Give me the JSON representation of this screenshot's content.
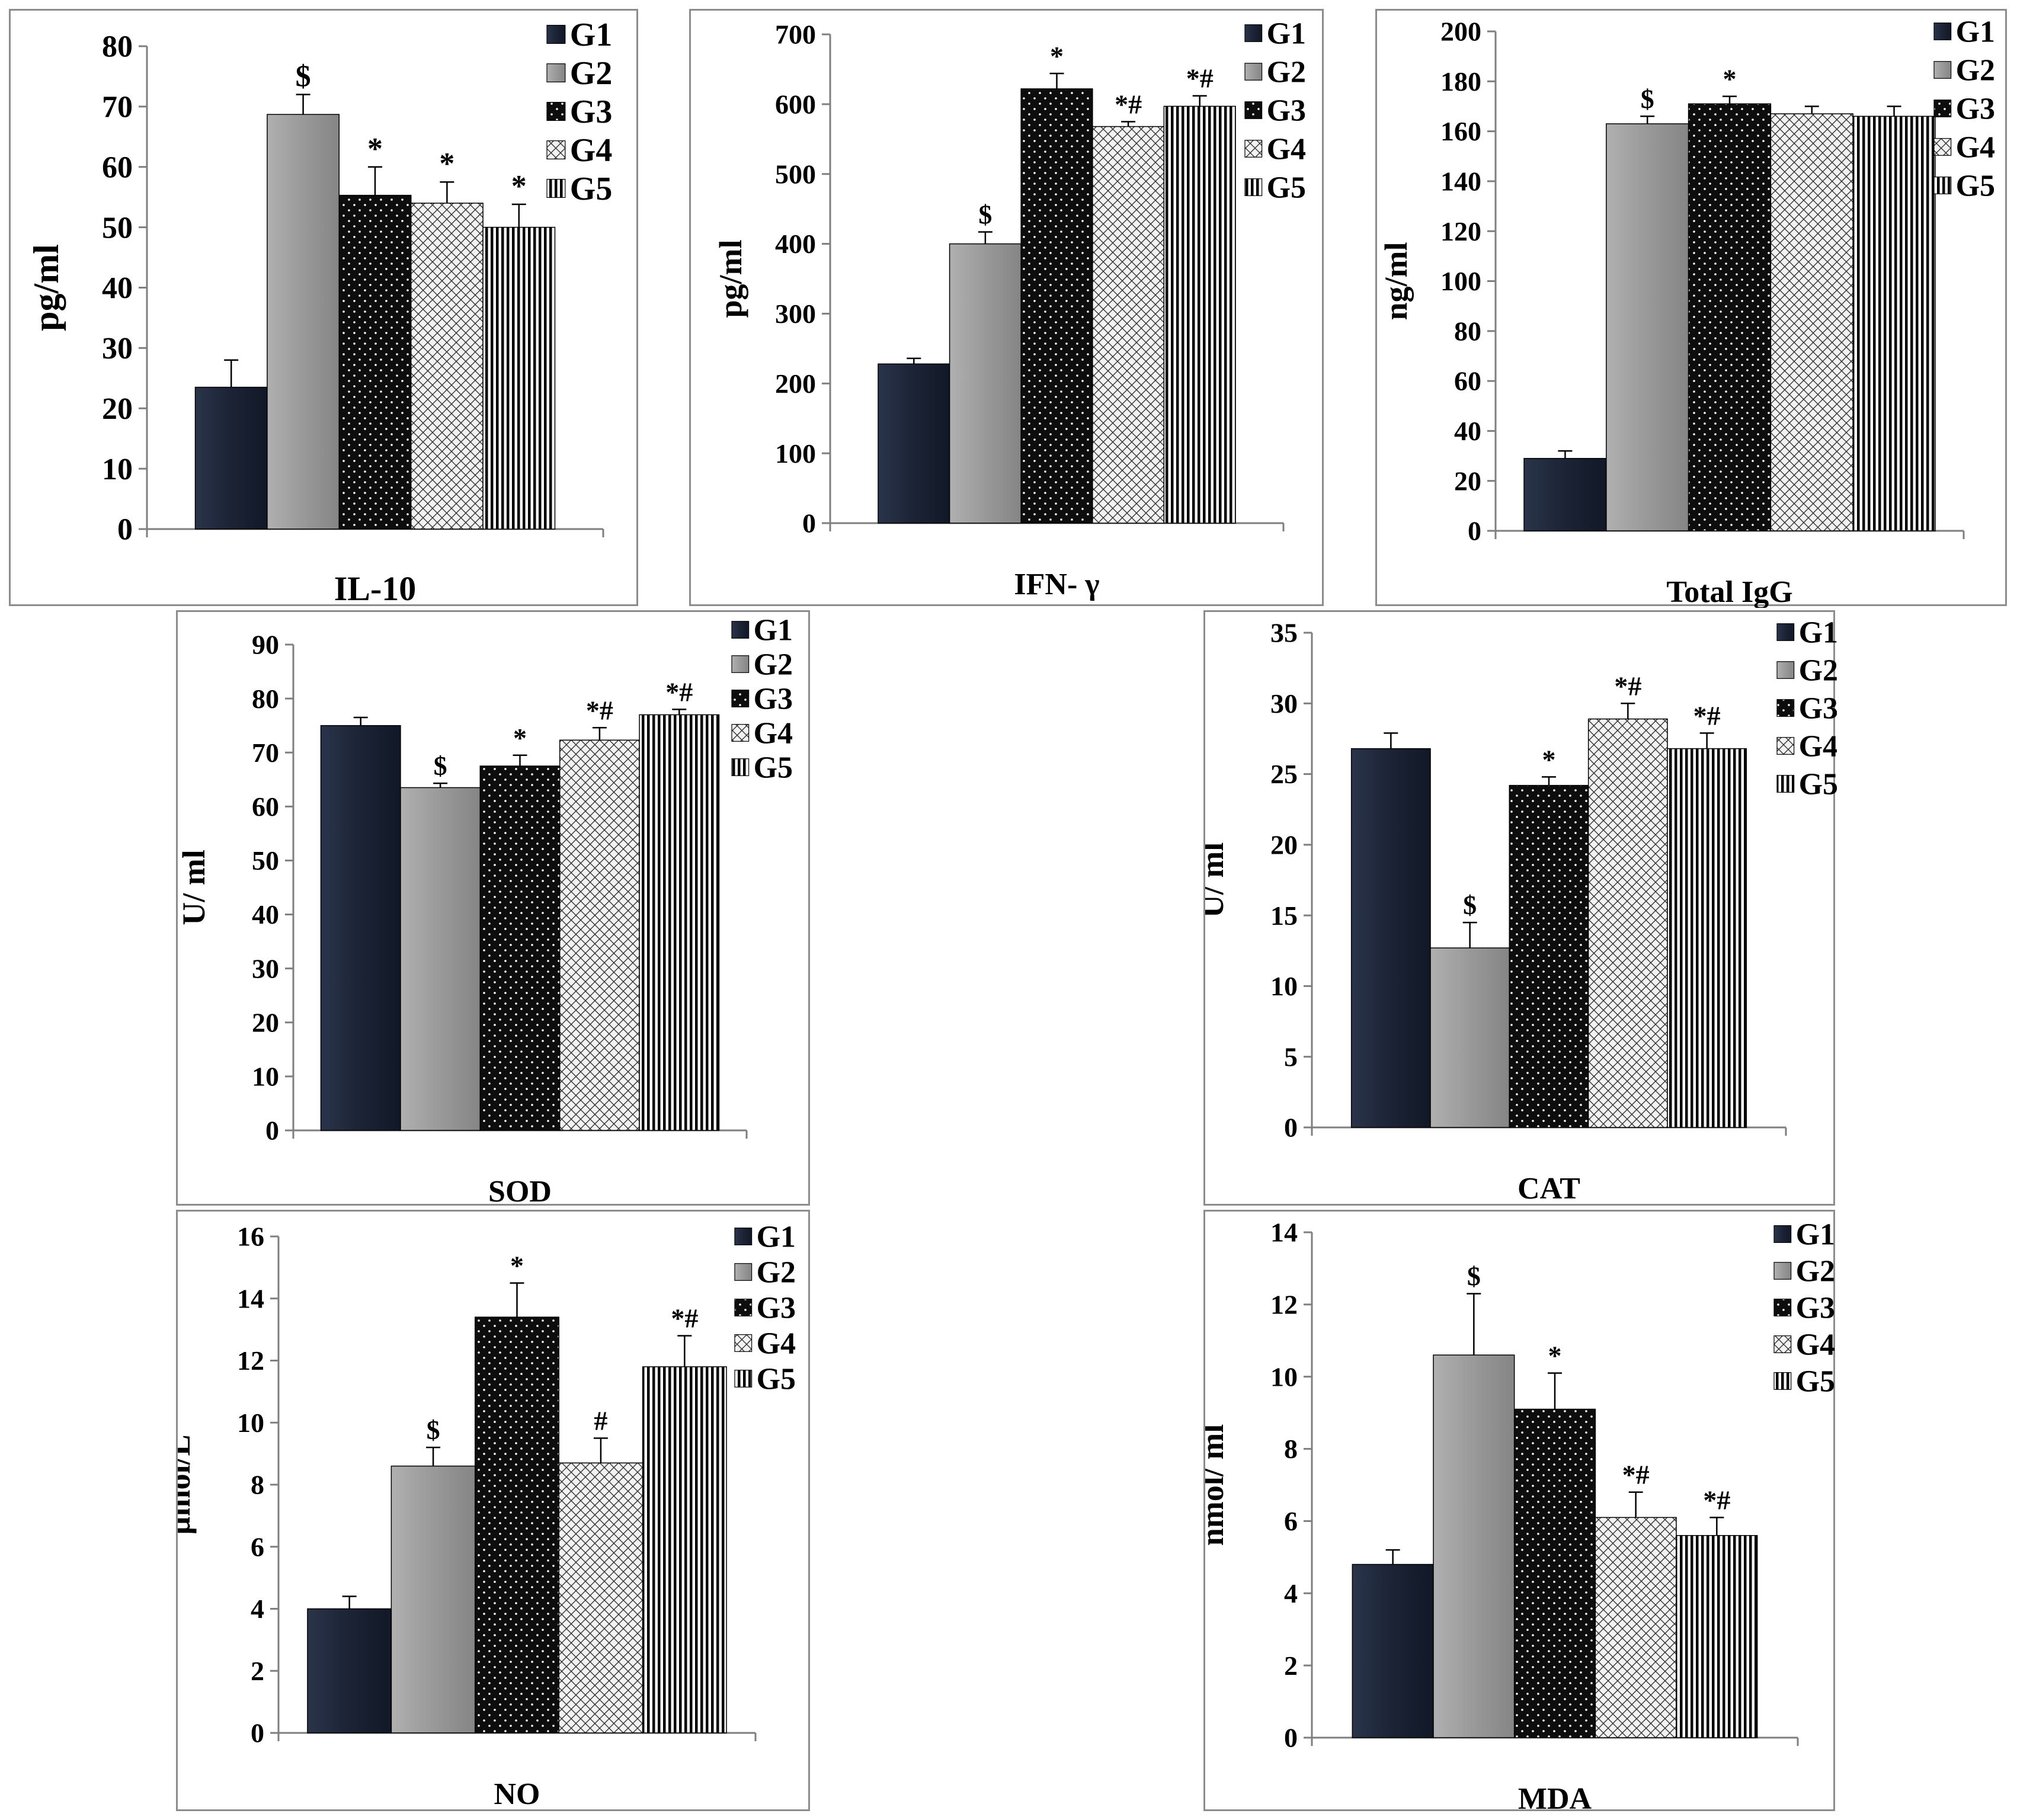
{
  "figure": {
    "legend_labels": [
      "G1",
      "G2",
      "G3",
      "G4",
      "G5"
    ]
  },
  "series_colors": [
    "#1b2335",
    "#999999",
    "#0d0d0d",
    "#f2f2f2",
    "#000000"
  ],
  "chart_data": [
    {
      "type": "bar",
      "title": "IL-10",
      "xlabel": "IL-10",
      "ylabel": "pg/ml",
      "categories": [
        "G1",
        "G2",
        "G3",
        "G4",
        "G5"
      ],
      "values": [
        23.5,
        68.7,
        55.3,
        54.0,
        50.0
      ],
      "errors": [
        4.5,
        3.3,
        4.7,
        3.5,
        3.8
      ],
      "annotations": [
        "",
        "$",
        "*",
        "*",
        "*"
      ],
      "ylim": [
        0,
        80
      ],
      "yticks": [
        0,
        10,
        20,
        30,
        40,
        50,
        60,
        70,
        80
      ],
      "grid": false,
      "legend": "top-right"
    },
    {
      "type": "bar",
      "title": "IFN- γ",
      "xlabel": "IFN- γ",
      "ylabel": "pg/ml",
      "categories": [
        "G1",
        "G2",
        "G3",
        "G4",
        "G5"
      ],
      "values": [
        228,
        400,
        622,
        568,
        597
      ],
      "errors": [
        8,
        17,
        22,
        7,
        15
      ],
      "annotations": [
        "",
        "$",
        "*",
        "*#",
        "*#"
      ],
      "ylim": [
        0,
        700
      ],
      "yticks": [
        0,
        100,
        200,
        300,
        400,
        500,
        600,
        700
      ],
      "grid": false,
      "legend": "top-right"
    },
    {
      "type": "bar",
      "title": "Total IgG",
      "xlabel": "Total IgG",
      "ylabel": "ng/ml",
      "categories": [
        "G1",
        "G2",
        "G3",
        "G4",
        "G5"
      ],
      "values": [
        29,
        163,
        171,
        167,
        166
      ],
      "errors": [
        3,
        3,
        3,
        3,
        4
      ],
      "annotations": [
        "",
        "$",
        "*",
        "",
        ""
      ],
      "ylim": [
        0,
        200
      ],
      "yticks": [
        0,
        20,
        40,
        60,
        80,
        100,
        120,
        140,
        160,
        180,
        200
      ],
      "grid": false,
      "legend": "top-right"
    },
    {
      "type": "bar",
      "title": "SOD",
      "xlabel": "SOD",
      "ylabel": "U/ ml",
      "categories": [
        "G1",
        "G2",
        "G3",
        "G4",
        "G5"
      ],
      "values": [
        75,
        63.5,
        67.5,
        72.3,
        77
      ],
      "errors": [
        1.5,
        0.8,
        2.0,
        2.3,
        1.0
      ],
      "annotations": [
        "",
        "$",
        "*",
        "*#",
        "*#"
      ],
      "ylim": [
        0,
        90
      ],
      "yticks": [
        0,
        10,
        20,
        30,
        40,
        50,
        60,
        70,
        80,
        90
      ],
      "grid": false,
      "legend": "top-right"
    },
    {
      "type": "bar",
      "title": "CAT",
      "xlabel": "CAT",
      "ylabel": "U/ ml",
      "categories": [
        "G1",
        "G2",
        "G3",
        "G4",
        "G5"
      ],
      "values": [
        26.8,
        12.7,
        24.2,
        28.9,
        26.8
      ],
      "errors": [
        1.1,
        1.8,
        0.6,
        1.1,
        1.1
      ],
      "annotations": [
        "",
        "$",
        "*",
        "*#",
        "*#"
      ],
      "ylim": [
        0,
        35
      ],
      "yticks": [
        0,
        5,
        10,
        15,
        20,
        25,
        30,
        35
      ],
      "grid": false,
      "legend": "top-right"
    },
    {
      "type": "bar",
      "title": "NO",
      "xlabel": "NO",
      "ylabel": "µmol/L",
      "categories": [
        "G1",
        "G2",
        "G3",
        "G4",
        "G5"
      ],
      "values": [
        4.0,
        8.6,
        13.4,
        8.7,
        11.8
      ],
      "errors": [
        0.4,
        0.6,
        1.1,
        0.8,
        1.0
      ],
      "annotations": [
        "",
        "$",
        "*",
        "#",
        "*#"
      ],
      "ylim": [
        0,
        16
      ],
      "yticks": [
        0,
        2,
        4,
        6,
        8,
        10,
        12,
        14,
        16
      ],
      "grid": false,
      "legend": "top-right"
    },
    {
      "type": "bar",
      "title": "MDA",
      "xlabel": "MDA",
      "ylabel": "nmol/ ml",
      "categories": [
        "G1",
        "G2",
        "G3",
        "G4",
        "G5"
      ],
      "values": [
        4.8,
        10.6,
        9.1,
        6.1,
        5.6
      ],
      "errors": [
        0.4,
        1.7,
        1.0,
        0.7,
        0.5
      ],
      "annotations": [
        "",
        "$",
        "*",
        "*#",
        "*#"
      ],
      "ylim": [
        0,
        14
      ],
      "yticks": [
        0,
        2,
        4,
        6,
        8,
        10,
        12,
        14
      ],
      "grid": false,
      "legend": "top-right"
    }
  ]
}
